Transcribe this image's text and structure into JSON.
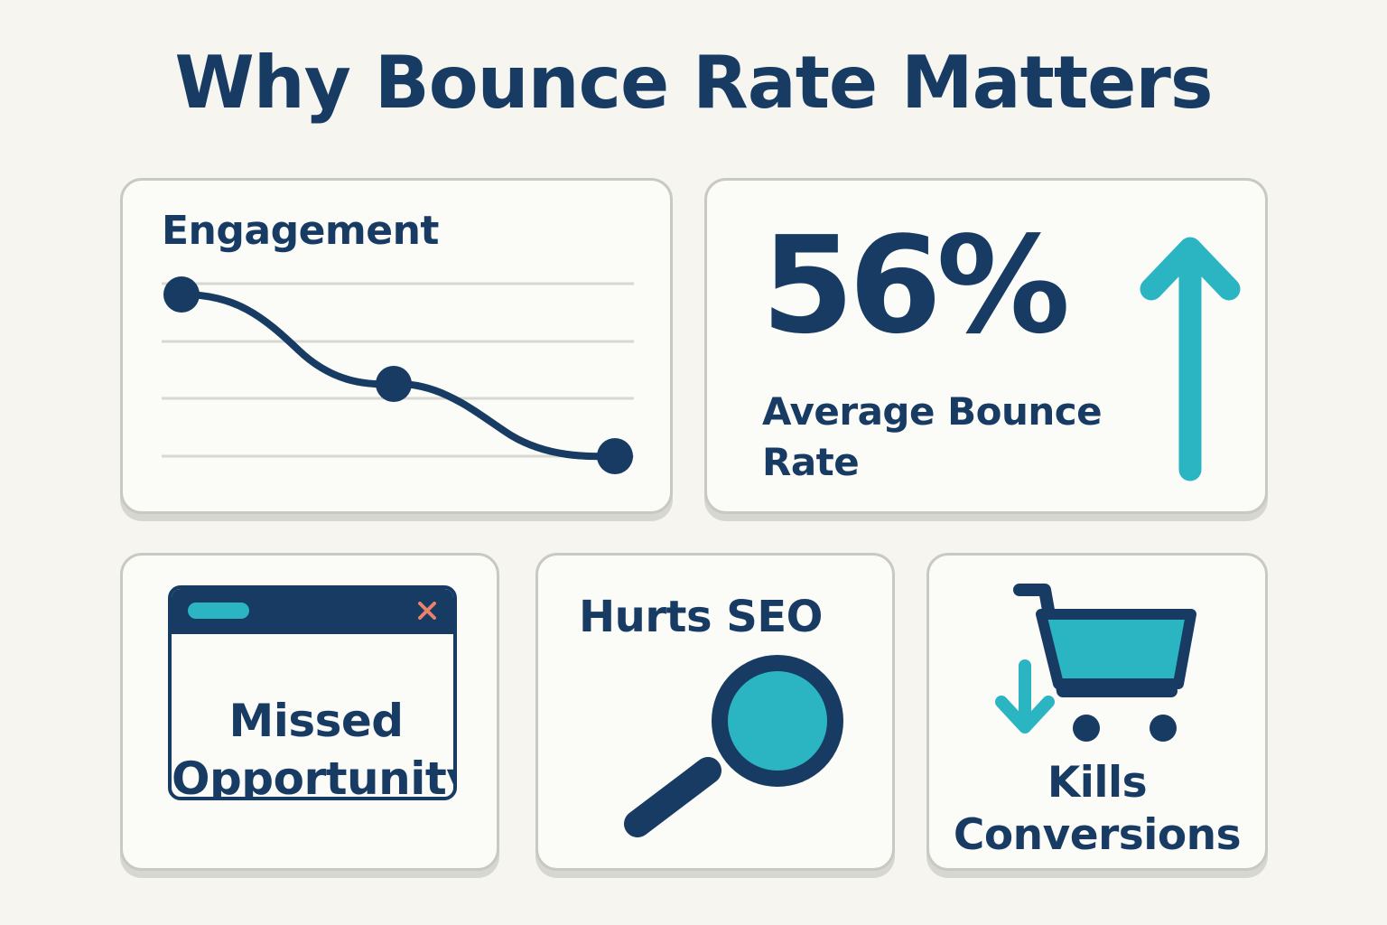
{
  "title": "Why Bounce Rate Matters",
  "colors": {
    "background": "#f6f5f0",
    "card": "#fbfbf8",
    "navy": "#173b63",
    "teal": "#2bb5c2",
    "close": "#e8826b"
  },
  "engagement": {
    "title": "Engagement"
  },
  "bounce": {
    "value": "56%",
    "label": "Average Bounce Rate"
  },
  "missed": {
    "label": "Missed Opportunity"
  },
  "seo": {
    "label": "Hurts SEO"
  },
  "conversions": {
    "label": "Kills Conversions"
  },
  "icons": {
    "trend": "line-chart-icon",
    "arrow_up": "arrow-up-icon",
    "browser": "browser-window-icon",
    "close": "close-icon",
    "search": "magnifier-icon",
    "cart": "shopping-cart-icon",
    "arrow_down": "arrow-down-icon"
  }
}
